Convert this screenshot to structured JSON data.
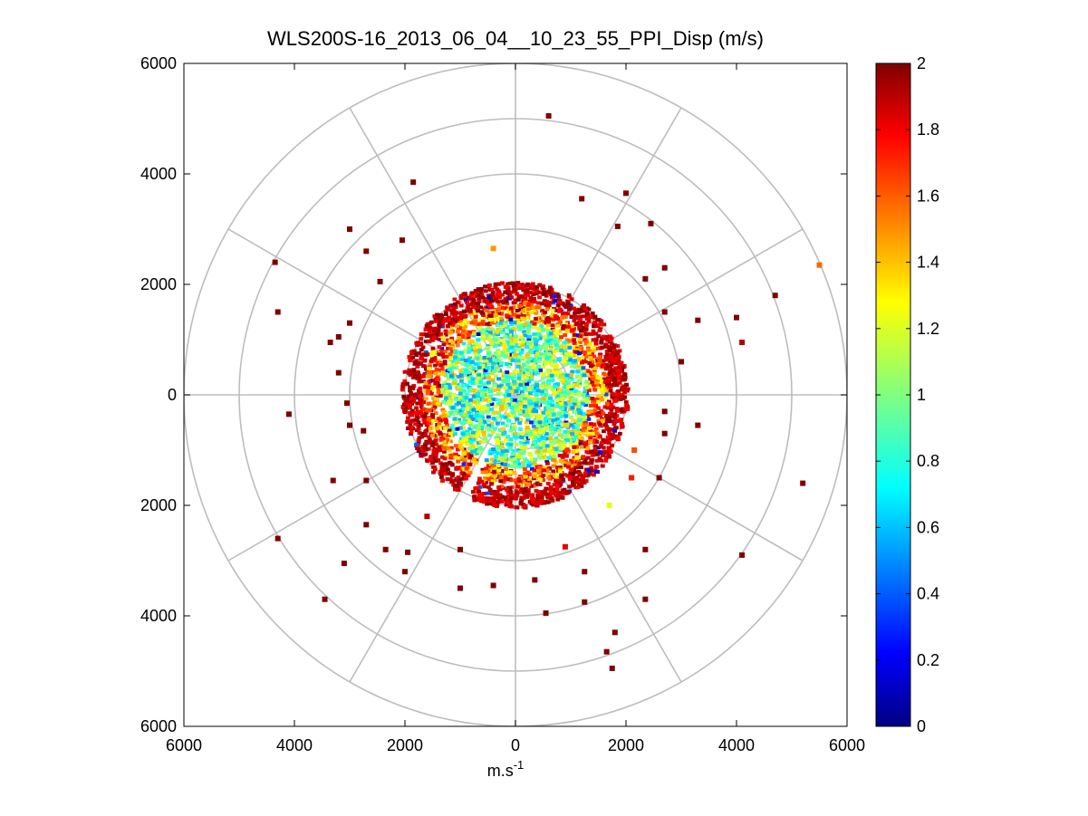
{
  "chart_data": {
    "type": "heatmap",
    "subtype": "polar-ppi",
    "title": "WLS200S-16_2013_06_04__10_23_55_PPI_Disp (m/s)",
    "xlabel_base": "m.s",
    "xlabel_sup": "-1",
    "ylabel": "",
    "xlim": [
      -6000,
      6000
    ],
    "ylim": [
      -6000,
      6000
    ],
    "x_ticks": [
      -6000,
      -4000,
      -2000,
      0,
      2000,
      4000,
      6000
    ],
    "x_tick_labels": [
      "6000",
      "4000",
      "2000",
      "0",
      "2000",
      "4000",
      "6000"
    ],
    "y_ticks": [
      6000,
      4000,
      2000,
      0,
      -2000,
      -4000,
      -6000
    ],
    "y_tick_labels": [
      "6000",
      "4000",
      "2000",
      "0",
      "2000",
      "4000",
      "6000"
    ],
    "polar_grid": {
      "rings": [
        1000,
        2000,
        3000,
        4000,
        5000,
        6000
      ],
      "spoke_angles_deg": [
        0,
        30,
        60,
        90,
        120,
        150,
        180,
        210,
        240,
        270,
        300,
        330
      ]
    },
    "colorbar": {
      "colormap": "jet",
      "min": 0,
      "max": 2,
      "ticks": [
        0,
        0.2,
        0.4,
        0.6,
        0.8,
        1,
        1.2,
        1.4,
        1.6,
        1.8,
        2
      ],
      "tick_labels": [
        "0",
        "0.2",
        "0.4",
        "0.6",
        "0.8",
        "1",
        "1.2",
        "1.4",
        "1.6",
        "1.8",
        "2"
      ]
    },
    "dense_region": {
      "description_free_summary": "dense scan data within ~2000 m, center values ~0.8-1.2, edge ~2",
      "max_range": 2050,
      "gap_sector_deg": [
        240,
        246
      ]
    },
    "points": [
      {
        "x": 600,
        "y": 5050,
        "v": 2
      },
      {
        "x": -1850,
        "y": 3850,
        "v": 2
      },
      {
        "x": -3000,
        "y": 3000,
        "v": 2
      },
      {
        "x": 2000,
        "y": 3650,
        "v": 2
      },
      {
        "x": 1200,
        "y": 3550,
        "v": 2
      },
      {
        "x": 2450,
        "y": 3100,
        "v": 2
      },
      {
        "x": 1850,
        "y": 3050,
        "v": 2
      },
      {
        "x": -4350,
        "y": 2400,
        "v": 2
      },
      {
        "x": -4300,
        "y": 1500,
        "v": 2
      },
      {
        "x": -2050,
        "y": 2800,
        "v": 2
      },
      {
        "x": -2700,
        "y": 2600,
        "v": 2
      },
      {
        "x": -2450,
        "y": 2050,
        "v": 2
      },
      {
        "x": -3350,
        "y": 950,
        "v": 2
      },
      {
        "x": -3200,
        "y": 1050,
        "v": 2
      },
      {
        "x": -3000,
        "y": 1300,
        "v": 2
      },
      {
        "x": -3200,
        "y": 400,
        "v": 2
      },
      {
        "x": -4100,
        "y": -350,
        "v": 2
      },
      {
        "x": -3050,
        "y": -150,
        "v": 2
      },
      {
        "x": -3000,
        "y": -550,
        "v": 2
      },
      {
        "x": -2750,
        "y": -650,
        "v": 2
      },
      {
        "x": -3300,
        "y": -1550,
        "v": 2
      },
      {
        "x": -2700,
        "y": -1550,
        "v": 2
      },
      {
        "x": -4300,
        "y": -2600,
        "v": 2
      },
      {
        "x": -3450,
        "y": -3700,
        "v": 2
      },
      {
        "x": -3100,
        "y": -3050,
        "v": 2
      },
      {
        "x": -2700,
        "y": -2350,
        "v": 2
      },
      {
        "x": -2350,
        "y": -2800,
        "v": 2
      },
      {
        "x": -2000,
        "y": -3200,
        "v": 2
      },
      {
        "x": -1950,
        "y": -2850,
        "v": 2
      },
      {
        "x": -1000,
        "y": -3500,
        "v": 2
      },
      {
        "x": -1000,
        "y": -2800,
        "v": 2
      },
      {
        "x": -400,
        "y": -3450,
        "v": 2
      },
      {
        "x": 350,
        "y": -3350,
        "v": 2
      },
      {
        "x": 550,
        "y": -3950,
        "v": 2
      },
      {
        "x": 1250,
        "y": -3200,
        "v": 2
      },
      {
        "x": 1250,
        "y": -3750,
        "v": 2
      },
      {
        "x": 1800,
        "y": -4300,
        "v": 2
      },
      {
        "x": 1650,
        "y": -4650,
        "v": 2
      },
      {
        "x": 1750,
        "y": -4950,
        "v": 2
      },
      {
        "x": 2350,
        "y": -3700,
        "v": 2
      },
      {
        "x": 2350,
        "y": -2800,
        "v": 2
      },
      {
        "x": 2600,
        "y": -1500,
        "v": 2
      },
      {
        "x": 3300,
        "y": -550,
        "v": 2
      },
      {
        "x": 4100,
        "y": -2900,
        "v": 2
      },
      {
        "x": 5200,
        "y": -1600,
        "v": 2
      },
      {
        "x": 4700,
        "y": 1800,
        "v": 2
      },
      {
        "x": 4000,
        "y": 1400,
        "v": 2
      },
      {
        "x": 4100,
        "y": 950,
        "v": 1.9
      },
      {
        "x": 3300,
        "y": 1350,
        "v": 2
      },
      {
        "x": 3000,
        "y": 600,
        "v": 2
      },
      {
        "x": 2700,
        "y": 1500,
        "v": 2
      },
      {
        "x": 2350,
        "y": 2100,
        "v": 2
      },
      {
        "x": 2700,
        "y": 2300,
        "v": 2
      },
      {
        "x": 2700,
        "y": -300,
        "v": 2
      },
      {
        "x": 2700,
        "y": -700,
        "v": 2
      },
      {
        "x": 5500,
        "y": 2350,
        "v": 1.55
      },
      {
        "x": -400,
        "y": 2650,
        "v": 1.45
      },
      {
        "x": 2150,
        "y": -1000,
        "v": 1.6
      },
      {
        "x": 2100,
        "y": -1500,
        "v": 1.7
      },
      {
        "x": 1700,
        "y": -2000,
        "v": 1.2
      },
      {
        "x": -1600,
        "y": -2200,
        "v": 1.9
      },
      {
        "x": 900,
        "y": -2750,
        "v": 1.8
      }
    ]
  }
}
